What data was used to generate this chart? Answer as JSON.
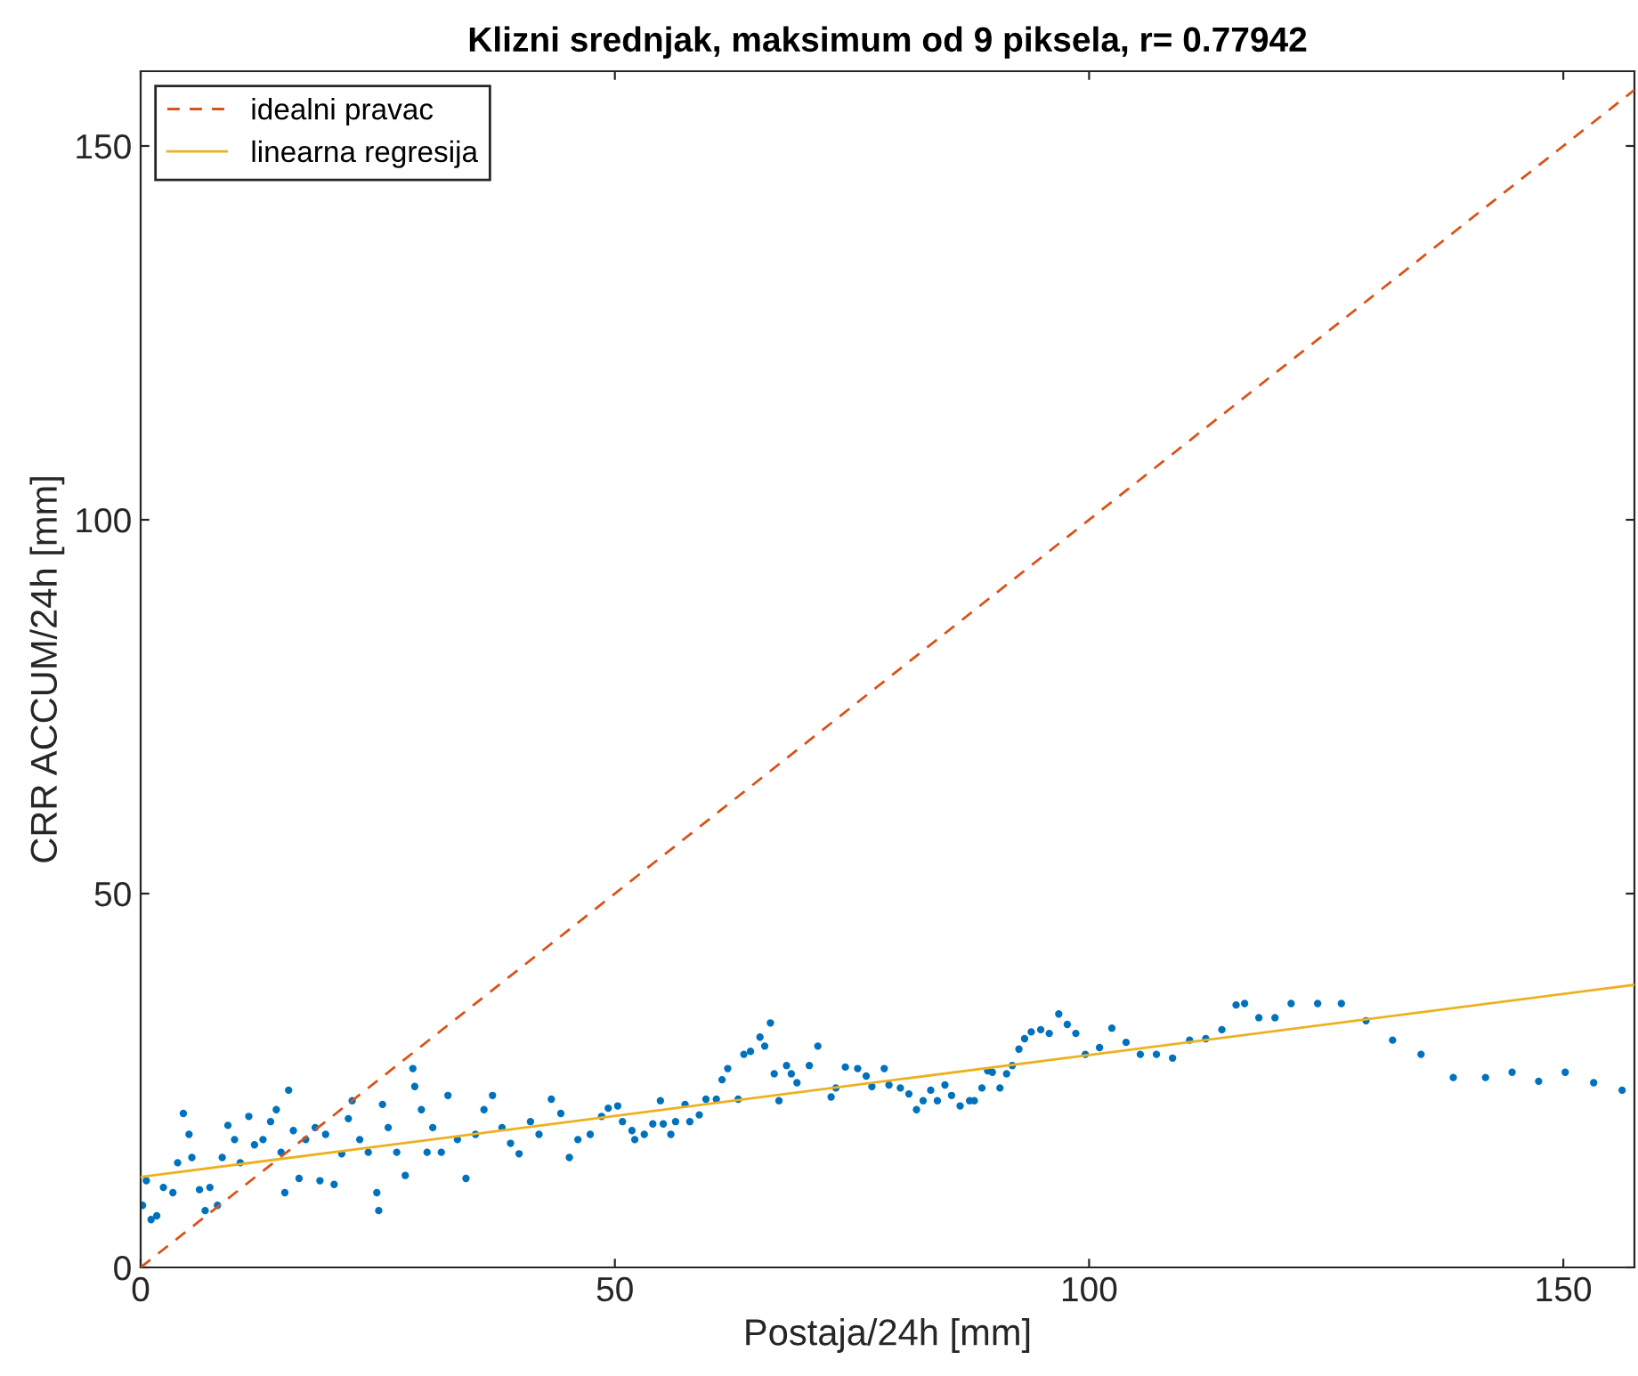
{
  "chart_data": {
    "type": "scatter",
    "title": "Klizni srednjak, maksimum od 9 piksela, r= 0.77942",
    "xlabel": "Postaja/24h [mm]",
    "ylabel": "CRR ACCUM/24h [mm]",
    "xlim": [
      0,
      157.5
    ],
    "ylim": [
      0,
      160
    ],
    "xticks": [
      0,
      50,
      100,
      150
    ],
    "yticks": [
      0,
      50,
      100,
      150
    ],
    "grid": false,
    "legend": "top left",
    "series": [
      {
        "color": "#0072bd",
        "marker": "circle",
        "x": [
          0.2,
          0.6,
          1.1,
          1.7,
          2.4,
          3.4,
          3.9,
          4.5,
          5.1,
          5.4,
          6.2,
          6.8,
          7.3,
          8.1,
          8.6,
          9.2,
          9.9,
          10.5,
          11.4,
          12.0,
          12.9,
          13.7,
          14.3,
          14.8,
          15.2,
          15.6,
          16.1,
          16.7,
          17.4,
          18.4,
          18.9,
          19.5,
          20.4,
          21.2,
          21.9,
          22.3,
          23.1,
          24.0,
          24.9,
          25.1,
          25.5,
          26.1,
          27.0,
          27.9,
          28.7,
          28.9,
          29.6,
          30.2,
          30.8,
          31.7,
          32.4,
          33.4,
          34.3,
          35.3,
          36.2,
          37.1,
          38.1,
          39.0,
          39.9,
          41.1,
          42.0,
          43.3,
          44.3,
          45.2,
          46.1,
          47.4,
          48.6,
          49.3,
          50.3,
          50.8,
          51.8,
          52.1,
          53.1,
          54.0,
          54.8,
          55.1,
          55.9,
          56.4,
          57.4,
          57.9,
          58.9,
          59.6,
          60.7,
          61.3,
          61.9,
          63.0,
          63.6,
          64.3,
          65.3,
          65.8,
          66.4,
          66.8,
          67.3,
          68.1,
          68.6,
          69.2,
          70.5,
          71.4,
          72.8,
          73.3,
          74.3,
          75.6,
          76.5,
          77.1,
          78.4,
          78.9,
          80.1,
          81.0,
          81.8,
          82.5,
          83.3,
          84.0,
          84.8,
          85.5,
          86.4,
          87.4,
          87.9,
          88.7,
          89.3,
          89.8,
          90.6,
          91.3,
          91.9,
          92.6,
          93.2,
          93.9,
          94.9,
          95.8,
          96.8,
          97.7,
          98.6,
          99.6,
          101.1,
          102.4,
          103.9,
          105.4,
          107.1,
          108.8,
          110.6,
          112.3,
          114.0,
          115.5,
          116.4,
          117.9,
          119.6,
          121.3,
          124.1,
          126.6,
          129.2,
          132.0,
          135.0,
          138.4,
          141.8,
          144.6,
          147.4,
          150.2,
          153.2,
          156.2
        ],
        "values": [
          8.3,
          11.6,
          6.4,
          6.9,
          10.7,
          10.0,
          14.0,
          20.6,
          17.8,
          14.7,
          10.4,
          7.6,
          10.7,
          8.3,
          14.7,
          19.0,
          17.1,
          14.0,
          20.2,
          16.4,
          17.1,
          19.5,
          21.1,
          15.4,
          10.0,
          23.7,
          18.3,
          11.9,
          17.1,
          18.7,
          11.6,
          17.8,
          11.1,
          15.2,
          19.9,
          22.3,
          17.1,
          15.4,
          10.0,
          7.6,
          21.8,
          18.7,
          15.4,
          12.3,
          26.6,
          24.2,
          21.1,
          15.4,
          18.7,
          15.4,
          23.0,
          17.1,
          11.9,
          17.8,
          21.1,
          23.0,
          18.7,
          16.6,
          15.2,
          19.5,
          17.8,
          22.5,
          20.6,
          14.7,
          17.1,
          17.8,
          20.2,
          21.3,
          21.6,
          19.5,
          18.3,
          17.1,
          17.8,
          19.2,
          22.3,
          19.2,
          17.8,
          19.5,
          21.8,
          19.5,
          20.4,
          22.5,
          22.5,
          25.1,
          26.6,
          22.5,
          28.5,
          28.9,
          30.8,
          29.6,
          32.7,
          25.9,
          22.3,
          27.0,
          25.9,
          24.7,
          27.0,
          29.6,
          22.8,
          24.0,
          26.8,
          26.6,
          25.6,
          24.2,
          26.6,
          24.4,
          24.0,
          23.2,
          21.1,
          22.3,
          23.7,
          22.3,
          24.4,
          23.0,
          21.6,
          22.3,
          22.3,
          24.0,
          26.3,
          26.1,
          24.0,
          25.9,
          27.0,
          29.2,
          30.6,
          31.5,
          31.8,
          31.3,
          33.9,
          32.5,
          31.3,
          28.5,
          29.4,
          32.0,
          30.1,
          28.5,
          28.5,
          28.0,
          30.4,
          30.6,
          31.8,
          35.1,
          35.3,
          33.4,
          33.4,
          35.3,
          35.3,
          35.3,
          33.0,
          30.4,
          28.5,
          25.4,
          25.4,
          26.1,
          24.9,
          26.1,
          24.7,
          23.7
        ]
      },
      {
        "type": "line",
        "name": "idealni pravac",
        "color": "#d95319",
        "line_style": "dashed",
        "x": [
          0,
          157.5
        ],
        "values": [
          0,
          157.5
        ]
      },
      {
        "type": "line",
        "name": "linearna regresija",
        "color": "#edb120",
        "line_style": "solid",
        "x": [
          0,
          157.5
        ],
        "values": [
          12.1,
          37.8
        ]
      }
    ]
  }
}
